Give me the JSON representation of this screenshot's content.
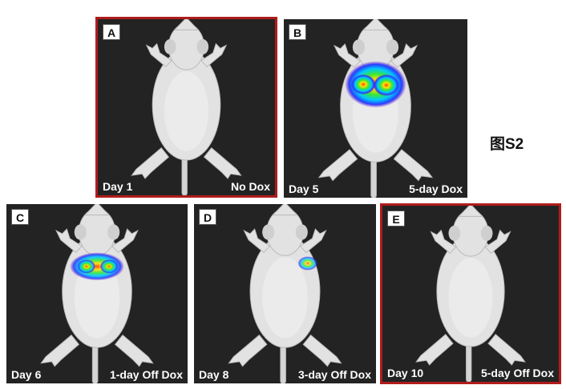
{
  "figure_label": "图S2",
  "panels": [
    {
      "letter": "A",
      "day": "Day 1",
      "treatment": "No Dox",
      "highlighted": true,
      "signal": "none"
    },
    {
      "letter": "B",
      "day": "Day 5",
      "treatment": "5-day Dox",
      "highlighted": false,
      "signal": "strong"
    },
    {
      "letter": "C",
      "day": "Day 6",
      "treatment": "1-day Off Dox",
      "highlighted": false,
      "signal": "moderate"
    },
    {
      "letter": "D",
      "day": "Day 8",
      "treatment": "3-day Off Dox",
      "highlighted": false,
      "signal": "weak"
    },
    {
      "letter": "E",
      "day": "Day 10",
      "treatment": "5-day Off Dox",
      "highlighted": true,
      "signal": "none"
    }
  ],
  "colors": {
    "highlight_border": "#b01c1c",
    "panel_background": "#232323",
    "mouse_fur": "#e4e4e4"
  }
}
